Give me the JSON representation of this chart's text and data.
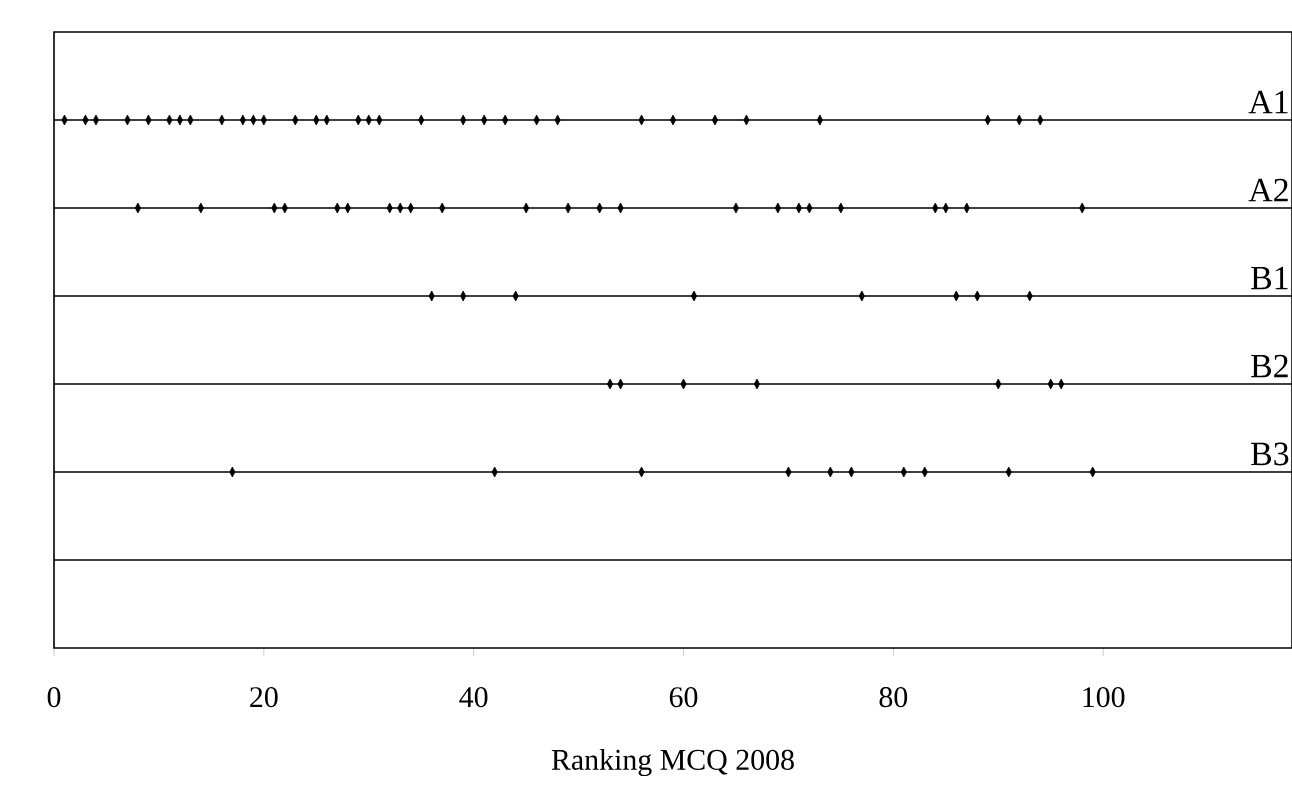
{
  "chart_data": {
    "type": "scatter",
    "orientation": "horizontal",
    "categories": [
      "A1",
      "A2",
      "B1",
      "B2",
      "B3",
      null
    ],
    "xlabel": "Ranking MCQ 2008",
    "xlim": [
      0,
      118
    ],
    "xticks": [
      0,
      20,
      40,
      60,
      80,
      100
    ],
    "marker": "diamond",
    "grid": "y",
    "series": [
      {
        "color": "#000000",
        "x": [
          "A1",
          "A1",
          "A1",
          "A1",
          "A1",
          "A1",
          "A1",
          "A1",
          "A1",
          "A1",
          "A1",
          "A1",
          "A1",
          "A1",
          "A1",
          "A1",
          "A1",
          "A1",
          "A1",
          "A1",
          "A1",
          "A1",
          "A1",
          "A1",
          "A1",
          "A1",
          "A1",
          "A1",
          "A1",
          "A1",
          "A1",
          "A1"
        ],
        "values": [
          1,
          3,
          4,
          7,
          9,
          11,
          12,
          13,
          16,
          18,
          19,
          20,
          23,
          25,
          26,
          29,
          30,
          31,
          35,
          39,
          41,
          43,
          46,
          48,
          56,
          59,
          63,
          66,
          73,
          89,
          92,
          94
        ]
      },
      {
        "color": "#000000",
        "x": [
          "A2",
          "A2",
          "A2",
          "A2",
          "A2",
          "A2",
          "A2",
          "A2",
          "A2",
          "A2",
          "A2",
          "A2",
          "A2",
          "A2",
          "A2",
          "A2",
          "A2",
          "A2",
          "A2",
          "A2",
          "A2",
          "A2",
          "A2"
        ],
        "values": [
          8,
          14,
          21,
          22,
          27,
          28,
          32,
          33,
          34,
          37,
          45,
          49,
          52,
          54,
          65,
          69,
          71,
          72,
          75,
          84,
          85,
          87,
          98
        ]
      },
      {
        "color": "#000000",
        "x": [
          "B1",
          "B1",
          "B1",
          "B1",
          "B1",
          "B1",
          "B1",
          "B1"
        ],
        "values": [
          36,
          39,
          44,
          61,
          77,
          86,
          88,
          93
        ]
      },
      {
        "color": "#000000",
        "x": [
          "B2",
          "B2",
          "B2",
          "B2",
          "B2",
          "B2",
          "B2"
        ],
        "values": [
          53,
          54,
          60,
          67,
          90,
          95,
          96
        ]
      },
      {
        "color": "#000000",
        "x": [
          "B3",
          "B3",
          "B3",
          "B3",
          "B3",
          "B3",
          "B3",
          "B3",
          "B3",
          "B3"
        ],
        "values": [
          17,
          42,
          56,
          70,
          74,
          76,
          81,
          83,
          91,
          99
        ]
      }
    ]
  }
}
